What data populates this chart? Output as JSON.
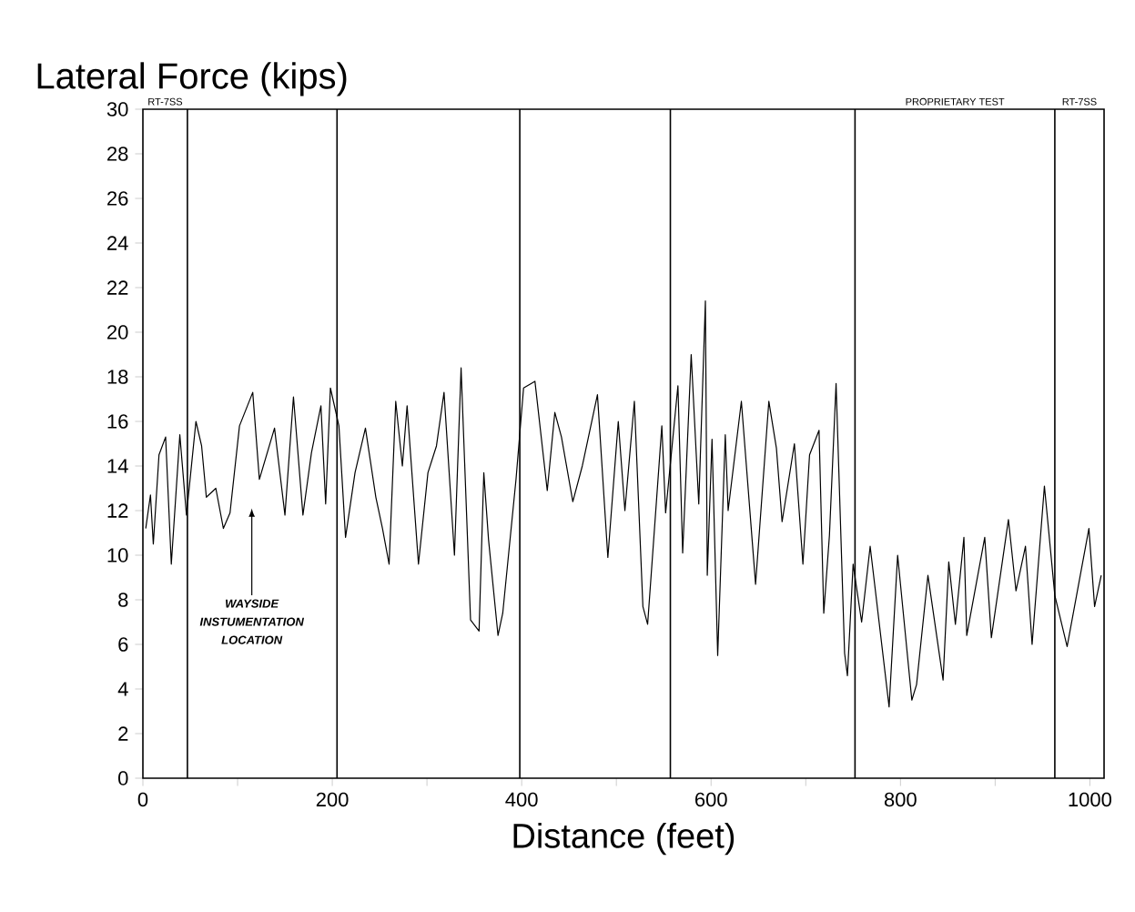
{
  "chart_data": {
    "type": "line",
    "title": "Lateral Force (kips)",
    "xlabel": "Distance (feet)",
    "xlim": [
      0,
      1015
    ],
    "ylim": [
      0,
      30
    ],
    "xticks": [
      0,
      {
        "value": 100,
        "label": null
      },
      200,
      {
        "value": 300,
        "label": null
      },
      400,
      {
        "value": 500,
        "label": null
      },
      600,
      {
        "value": 700,
        "label": null
      },
      800,
      {
        "value": 900,
        "label": null
      },
      1000
    ],
    "yticks": [
      0,
      2,
      4,
      6,
      8,
      10,
      12,
      14,
      16,
      18,
      20,
      22,
      24,
      26,
      28,
      30
    ],
    "grid": false,
    "marker": "none",
    "line_style": "solid",
    "series": [
      {
        "color": "#000000",
        "x": [
          3,
          8,
          11,
          17,
          24,
          30,
          39,
          46,
          56,
          62,
          67,
          77,
          85,
          92,
          102,
          116,
          123,
          139,
          150,
          159,
          169,
          178,
          188,
          193,
          198,
          207,
          214,
          224,
          235,
          246,
          253,
          260,
          267,
          274,
          279,
          291,
          301,
          310,
          318,
          329,
          336,
          346,
          355,
          360,
          365,
          375,
          380,
          394,
          402,
          414,
          427,
          435,
          442,
          454,
          464,
          480,
          491,
          502,
          509,
          519,
          528,
          533,
          548,
          552,
          565,
          570,
          579,
          587,
          594,
          596,
          601,
          607,
          615,
          618,
          632,
          647,
          661,
          669,
          675,
          688,
          697,
          704,
          714,
          719,
          725,
          732,
          741,
          744,
          750,
          759,
          768,
          788,
          797,
          812,
          817,
          829,
          845,
          851,
          858,
          867,
          870,
          889,
          896,
          914,
          922,
          932,
          939,
          952,
          963,
          976,
          999,
          1005,
          1012
        ],
        "values": [
          11.2,
          12.7,
          10.5,
          14.5,
          15.3,
          9.6,
          15.4,
          11.8,
          16.0,
          14.9,
          12.6,
          13.0,
          11.2,
          11.9,
          15.8,
          17.3,
          13.4,
          15.7,
          11.8,
          17.1,
          11.8,
          14.6,
          16.7,
          12.3,
          17.5,
          15.8,
          10.8,
          13.7,
          15.7,
          12.6,
          11.2,
          9.6,
          16.9,
          14.0,
          16.7,
          9.6,
          13.7,
          14.9,
          17.3,
          10.0,
          18.4,
          7.1,
          6.6,
          13.7,
          10.7,
          6.4,
          7.4,
          13.4,
          17.5,
          17.8,
          12.9,
          16.4,
          15.3,
          12.4,
          14.0,
          17.2,
          9.9,
          16.0,
          12.0,
          16.9,
          7.7,
          6.9,
          15.8,
          11.9,
          17.6,
          10.1,
          19.0,
          12.3,
          21.4,
          9.1,
          15.2,
          5.5,
          15.4,
          12.0,
          16.9,
          8.7,
          16.9,
          14.8,
          11.5,
          15.0,
          9.6,
          14.5,
          15.6,
          7.4,
          10.9,
          17.7,
          5.6,
          4.6,
          9.6,
          7.0,
          10.4,
          3.2,
          10.0,
          3.5,
          4.2,
          9.1,
          4.4,
          9.7,
          6.9,
          10.8,
          6.4,
          10.8,
          6.3,
          11.6,
          8.4,
          10.4,
          6.0,
          13.1,
          8.2,
          5.9,
          11.2,
          7.7,
          9.1
        ]
      }
    ],
    "ref_lines": [
      {
        "axis": "x",
        "value": 47
      },
      {
        "axis": "x",
        "value": 205
      },
      {
        "axis": "x",
        "value": 398
      },
      {
        "axis": "x",
        "value": 557
      },
      {
        "axis": "x",
        "value": 752
      },
      {
        "axis": "x",
        "value": 963
      }
    ],
    "annotations": [
      "RT-7SS",
      "PROPRIETARY TEST",
      "RT-7SS",
      "WAYSIDE INSTUMENTATION LOCATION"
    ]
  }
}
